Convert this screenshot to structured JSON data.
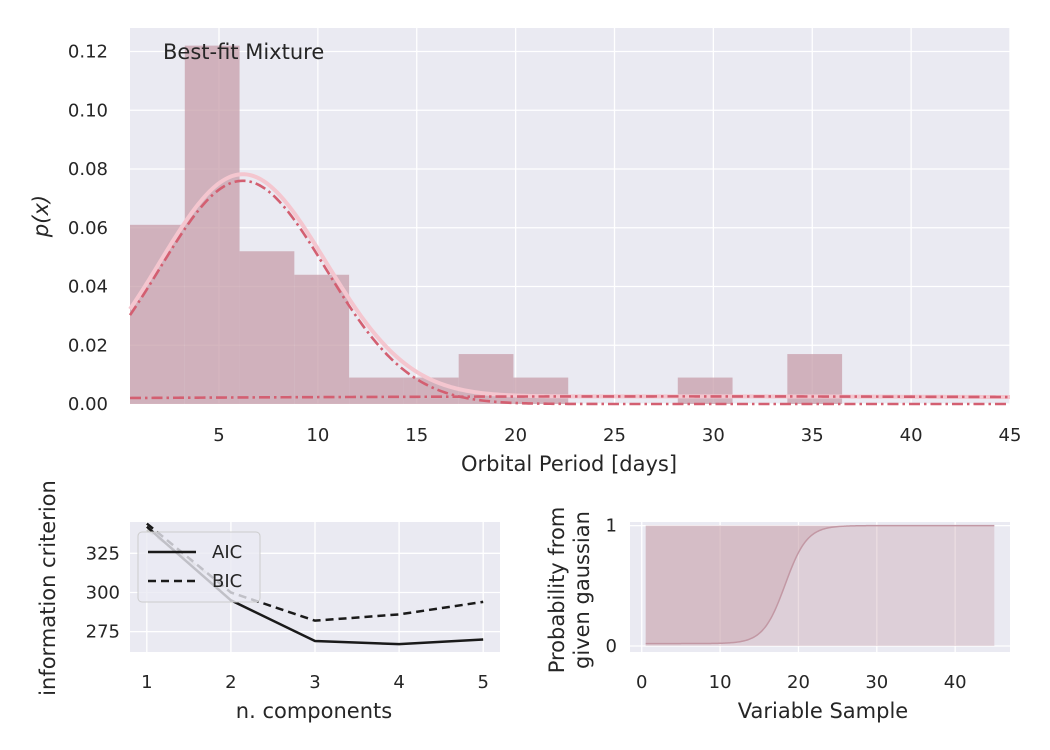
{
  "colors": {
    "panel_bg": "#EAEAF2",
    "grid": "#FFFFFF",
    "hist_fill": "#C79EA9",
    "pdf_total": "#F4C6CF",
    "pdf_component": "#D35F71",
    "aic": "#1A1A1A",
    "bic": "#1A1A1A",
    "gray_line": "#C8C8C8",
    "fill_band": "#C79EA9",
    "curve": "#C298A4",
    "text": "#262626"
  },
  "chart_data": [
    {
      "id": "main",
      "type": "bar",
      "annotation": "Best-fit Mixture",
      "xlabel": "Orbital Period [days]",
      "ylabel": "p(x)",
      "xlim": [
        0.5,
        45
      ],
      "ylim": [
        0,
        0.128
      ],
      "xticks": [
        5,
        10,
        15,
        20,
        25,
        30,
        35,
        40,
        45
      ],
      "yticks": [
        0.0,
        0.02,
        0.04,
        0.06,
        0.08,
        0.1,
        0.12
      ],
      "ytick_labels": [
        "0.00",
        "0.02",
        "0.04",
        "0.06",
        "0.08",
        "0.10",
        "0.12"
      ],
      "grid": true,
      "histogram": {
        "bin_edges": [
          0.5,
          3.27,
          6.04,
          8.81,
          11.58,
          14.35,
          17.12,
          19.89,
          22.66,
          25.43,
          28.2,
          30.97,
          33.74,
          36.51
        ],
        "density": [
          0.061,
          0.122,
          0.052,
          0.044,
          0.009,
          0.009,
          0.017,
          0.009,
          0.0,
          0.0,
          0.009,
          0.0,
          0.017
        ]
      },
      "components": [
        {
          "style": "dash-dot",
          "mean": 6.2,
          "std": 4.2,
          "weight": 0.8
        },
        {
          "style": "dash-dot",
          "mean": 28.0,
          "std": 40.0,
          "weight": 0.26
        }
      ],
      "total_pdf": {
        "style": "solid"
      }
    },
    {
      "id": "ic",
      "type": "line",
      "xlabel": "n. components",
      "ylabel": "information criterion",
      "x": [
        1,
        2,
        3,
        4,
        5
      ],
      "xticks": [
        1,
        2,
        3,
        4,
        5
      ],
      "yticks": [
        275,
        300,
        325
      ],
      "xlim": [
        0.8,
        5.2
      ],
      "ylim": [
        262,
        345
      ],
      "legend_position": "upper-left",
      "series": [
        {
          "name": "AIC",
          "values": [
            342,
            295,
            269,
            267,
            270
          ],
          "style": "solid"
        },
        {
          "name": "BIC",
          "values": [
            344,
            300,
            282,
            286,
            294
          ],
          "style": "dashed"
        }
      ],
      "gray_series": [
        {
          "values": [
            340,
            301
          ],
          "x": [
            1,
            2
          ],
          "style": "dashed"
        }
      ]
    },
    {
      "id": "prob",
      "type": "area",
      "xlabel": "Variable Sample",
      "ylabel_lines": [
        "Probability from",
        "given gaussian"
      ],
      "xticks": [
        0,
        10,
        20,
        30,
        40
      ],
      "yticks": [
        0,
        1
      ],
      "xlim": [
        -1.5,
        47
      ],
      "ylim": [
        -0.05,
        1.03
      ],
      "x_range": [
        0.5,
        45
      ],
      "sigmoid": {
        "midpoint": 18.3,
        "scale": 1.4,
        "floor": 0.02
      }
    }
  ]
}
